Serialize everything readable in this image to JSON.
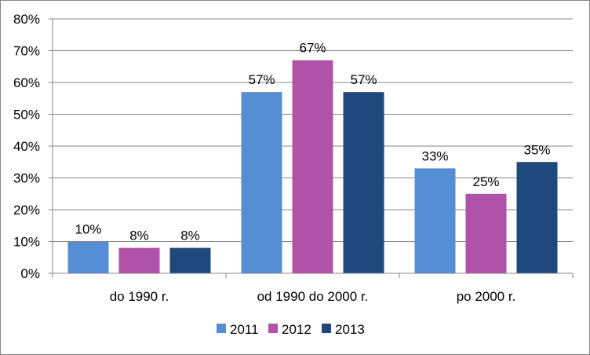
{
  "chart_data": {
    "type": "bar",
    "categories": [
      "do 1990 r.",
      "od 1990 do 2000 r.",
      "po 2000 r."
    ],
    "series": [
      {
        "name": "2011",
        "values": [
          10,
          57,
          33
        ],
        "labels": [
          "10%",
          "57%",
          "33%"
        ],
        "color": "#558ED5"
      },
      {
        "name": "2012",
        "values": [
          8,
          67,
          25
        ],
        "labels": [
          "8%",
          "67%",
          "25%"
        ],
        "color": "#B052A8"
      },
      {
        "name": "2013",
        "values": [
          8,
          57,
          35
        ],
        "labels": [
          "8%",
          "57%",
          "35%"
        ],
        "color": "#1F497D"
      }
    ],
    "ylim": [
      0,
      80
    ],
    "yticks": [
      0,
      10,
      20,
      30,
      40,
      50,
      60,
      70,
      80
    ],
    "ytick_labels": [
      "0%",
      "10%",
      "20%",
      "30%",
      "40%",
      "50%",
      "60%",
      "70%",
      "80%"
    ],
    "grid": true,
    "legend_position": "bottom",
    "title": "",
    "xlabel": "",
    "ylabel": ""
  }
}
